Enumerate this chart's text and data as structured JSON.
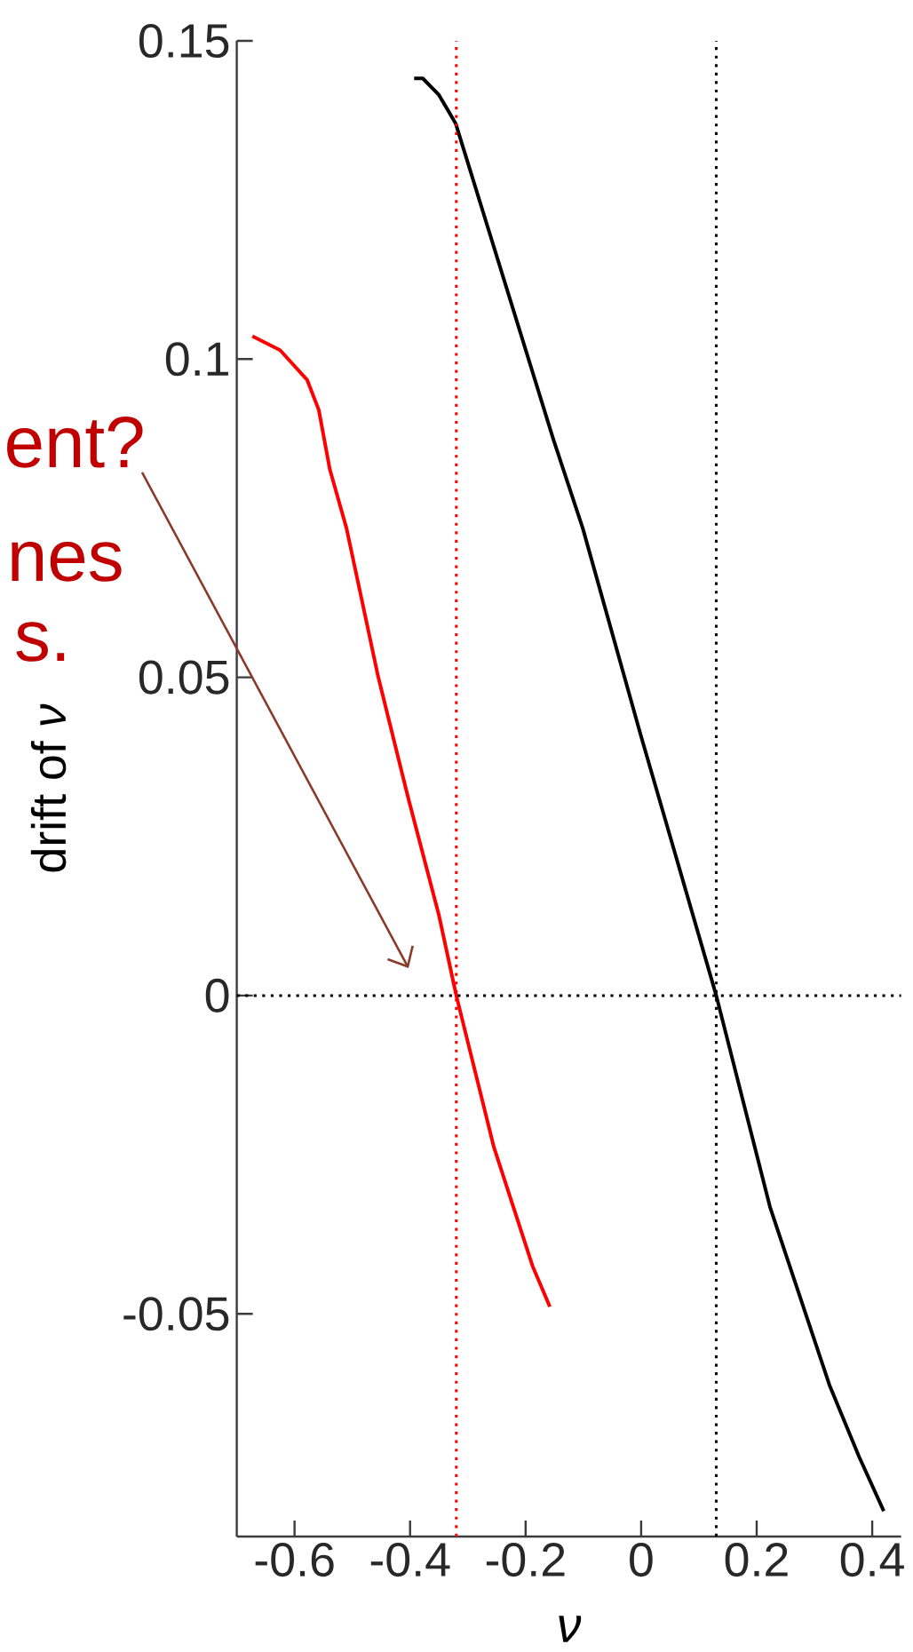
{
  "chart_data": {
    "type": "line",
    "xlabel": "*ν*",
    "ylabel": "drift of *ν*",
    "xlim": [
      -0.7,
      0.45
    ],
    "ylim": [
      -0.085,
      0.15
    ],
    "xticks": [
      -0.6,
      -0.4,
      -0.2,
      0,
      0.2,
      0.4
    ],
    "yticks": [
      -0.05,
      0,
      0.05,
      0.1,
      0.15
    ],
    "line_style": "solid",
    "series": [
      {
        "color": "#ff0000",
        "x": [
          -0.673,
          -0.625,
          -0.578,
          -0.558,
          -0.539,
          -0.51,
          -0.455,
          -0.404,
          -0.35,
          -0.32,
          -0.255,
          -0.188,
          -0.158
        ],
        "values": [
          0.1036,
          0.1014,
          0.0967,
          0.092,
          0.0827,
          0.0734,
          0.05,
          0.0313,
          0.0126,
          0,
          -0.0238,
          -0.0425,
          -0.0489
        ]
      },
      {
        "color": "#000000",
        "x": [
          -0.393,
          -0.378,
          -0.35,
          -0.321,
          -0.152,
          -0.101,
          0.0,
          0.13,
          0.223,
          0.326,
          0.377,
          0.42
        ],
        "values": [
          0.1441,
          0.1441,
          0.1415,
          0.137,
          0.0874,
          0.0734,
          0.0407,
          0,
          -0.0332,
          -0.0612,
          -0.0724,
          -0.081
        ]
      }
    ],
    "ref_lines": [
      {
        "axis": "x",
        "value": -0.32,
        "color": "#ff0000",
        "line_style": "dotted"
      },
      {
        "axis": "x",
        "value": 0.13,
        "color": "#000000",
        "line_style": "dotted"
      },
      {
        "axis": "y",
        "value": 0,
        "color": "#000000",
        "line_style": "dotted"
      }
    ],
    "annotations": [
      "ent?",
      "nes",
      "s."
    ]
  }
}
